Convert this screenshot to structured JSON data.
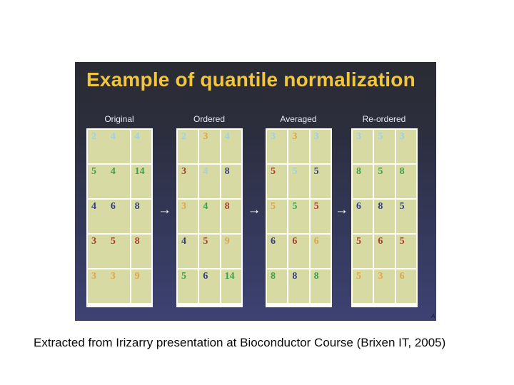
{
  "slide": {
    "title": "Example of quantile normalization",
    "title_color": "#f1c53d",
    "corner_mark": "A",
    "arrow_glyph": "→",
    "cell_background": "#d7daa3",
    "palette": {
      "blue": "#9fd0e6",
      "green": "#3da14c",
      "navy": "#35407c",
      "red": "#b23b28",
      "orange": "#dca64a"
    },
    "stages": [
      {
        "id": "original",
        "label": "Original",
        "merged_first_two_columns": true,
        "rows": [
          {
            "values": [
              "2",
              "4",
              "4"
            ],
            "colors": [
              "blue",
              "blue",
              "blue"
            ]
          },
          {
            "values": [
              "5",
              "4",
              "14"
            ],
            "colors": [
              "green",
              "green",
              "green"
            ]
          },
          {
            "values": [
              "4",
              "6",
              "8"
            ],
            "colors": [
              "navy",
              "navy",
              "navy"
            ]
          },
          {
            "values": [
              "3",
              "5",
              "8"
            ],
            "colors": [
              "red",
              "red",
              "red"
            ]
          },
          {
            "values": [
              "3",
              "3",
              "9"
            ],
            "colors": [
              "orange",
              "orange",
              "orange"
            ]
          }
        ]
      },
      {
        "id": "ordered",
        "label": "Ordered",
        "merged_first_two_columns": false,
        "rows": [
          {
            "values": [
              "2",
              "3",
              "4"
            ],
            "colors": [
              "blue",
              "orange",
              "blue"
            ]
          },
          {
            "values": [
              "3",
              "4",
              "8"
            ],
            "colors": [
              "red",
              "blue",
              "navy"
            ]
          },
          {
            "values": [
              "3",
              "4",
              "8"
            ],
            "colors": [
              "orange",
              "green",
              "red"
            ]
          },
          {
            "values": [
              "4",
              "5",
              "9"
            ],
            "colors": [
              "navy",
              "red",
              "orange"
            ]
          },
          {
            "values": [
              "5",
              "6",
              "14"
            ],
            "colors": [
              "green",
              "navy",
              "green"
            ]
          }
        ]
      },
      {
        "id": "averaged",
        "label": "Averaged",
        "merged_first_two_columns": false,
        "rows": [
          {
            "values": [
              "3",
              "3",
              "3"
            ],
            "colors": [
              "blue",
              "orange",
              "blue"
            ]
          },
          {
            "values": [
              "5",
              "5",
              "5"
            ],
            "colors": [
              "red",
              "blue",
              "navy"
            ]
          },
          {
            "values": [
              "5",
              "5",
              "5"
            ],
            "colors": [
              "orange",
              "green",
              "red"
            ]
          },
          {
            "values": [
              "6",
              "6",
              "6"
            ],
            "colors": [
              "navy",
              "red",
              "orange"
            ]
          },
          {
            "values": [
              "8",
              "8",
              "8"
            ],
            "colors": [
              "green",
              "navy",
              "green"
            ]
          }
        ]
      },
      {
        "id": "reordered",
        "label": "Re-ordered",
        "merged_first_two_columns": false,
        "rows": [
          {
            "values": [
              "3",
              "5",
              "3"
            ],
            "colors": [
              "blue",
              "blue",
              "blue"
            ]
          },
          {
            "values": [
              "8",
              "5",
              "8"
            ],
            "colors": [
              "green",
              "green",
              "green"
            ]
          },
          {
            "values": [
              "6",
              "8",
              "5"
            ],
            "colors": [
              "navy",
              "navy",
              "navy"
            ]
          },
          {
            "values": [
              "5",
              "6",
              "5"
            ],
            "colors": [
              "red",
              "red",
              "red"
            ]
          },
          {
            "values": [
              "5",
              "3",
              "6"
            ],
            "colors": [
              "orange",
              "orange",
              "orange"
            ]
          }
        ]
      }
    ]
  },
  "caption": "Extracted from Irizarry presentation at Bioconductor Course (Brixen IT, 2005)"
}
